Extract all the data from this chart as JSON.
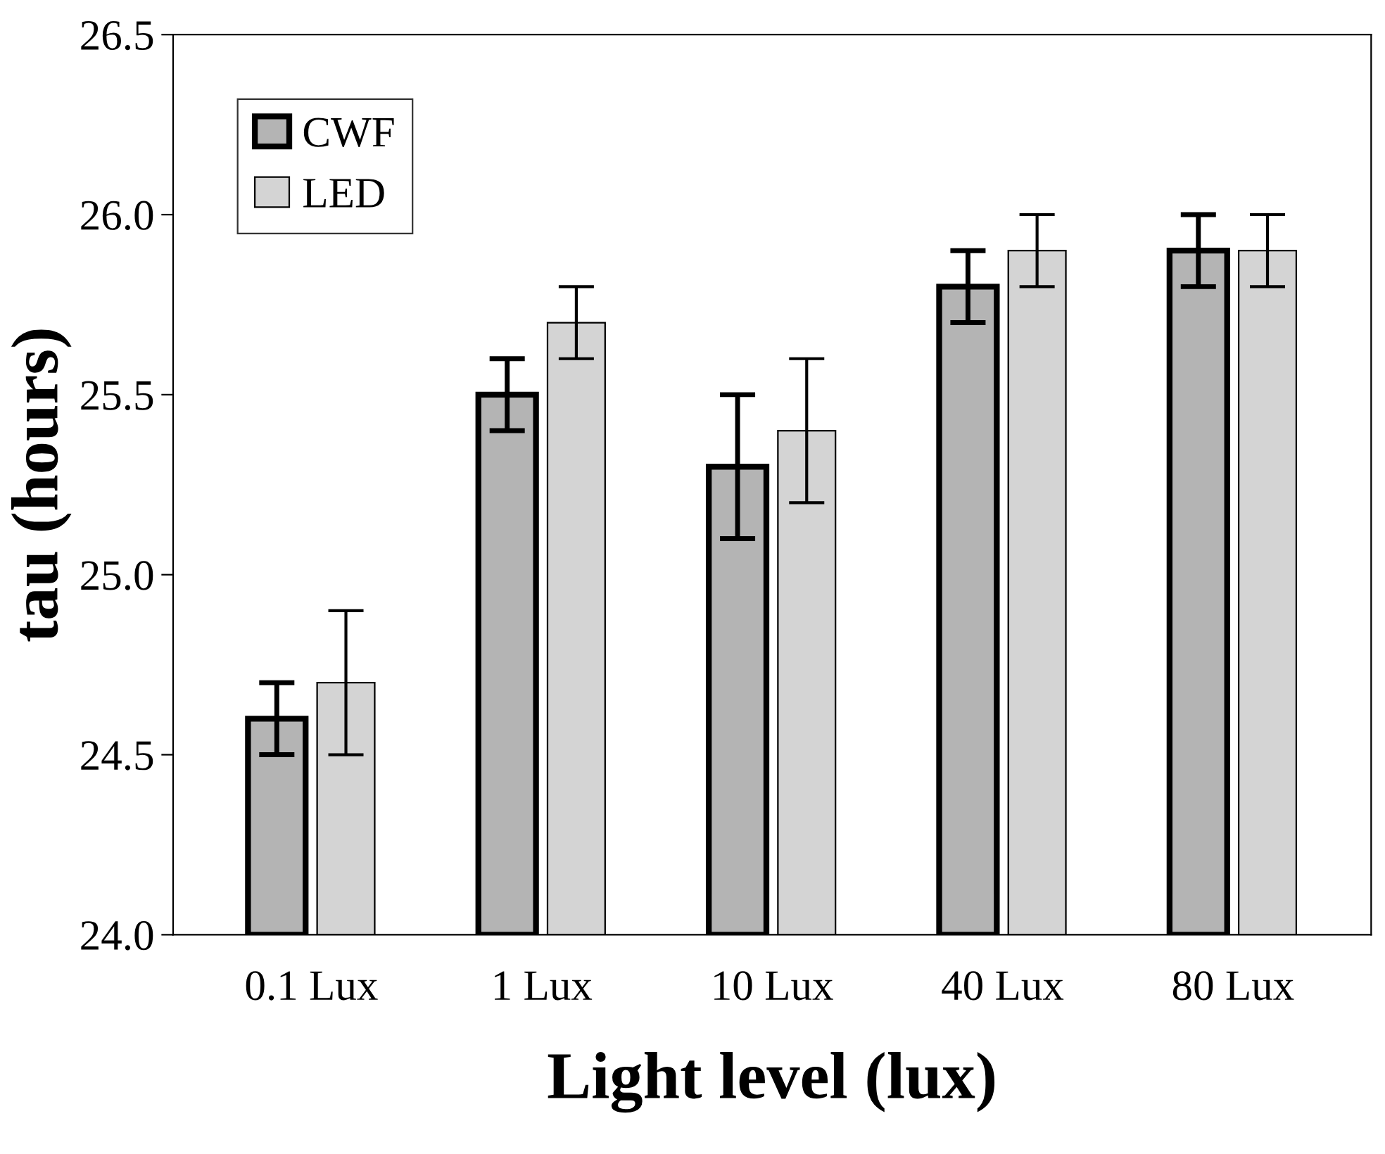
{
  "chart_data": {
    "type": "bar",
    "xlabel": "Light level (lux)",
    "ylabel": "tau (hours)",
    "categories": [
      "0.1 Lux",
      "1 Lux",
      "10 Lux",
      "40 Lux",
      "80 Lux"
    ],
    "series": [
      {
        "name": "CWF",
        "color": "#b4b4b4",
        "values": [
          24.6,
          25.5,
          25.3,
          25.8,
          25.9
        ],
        "errors": [
          0.1,
          0.1,
          0.2,
          0.1,
          0.1
        ]
      },
      {
        "name": "LED",
        "color": "#d4d4d4",
        "values": [
          24.7,
          25.7,
          25.4,
          25.9,
          25.9
        ],
        "errors": [
          0.2,
          0.1,
          0.2,
          0.1,
          0.1
        ]
      }
    ],
    "ylim": [
      24.0,
      26.5
    ],
    "yticks": [
      {
        "value": 24.0,
        "label": "24.0"
      },
      {
        "value": 24.5,
        "label": "24.5"
      },
      {
        "value": 25.0,
        "label": "25.0"
      },
      {
        "value": 25.5,
        "label": "25.5"
      },
      {
        "value": 26.0,
        "label": "26.0"
      },
      {
        "value": 26.5,
        "label": "26.5"
      }
    ],
    "legend": "top left",
    "grid": false
  }
}
